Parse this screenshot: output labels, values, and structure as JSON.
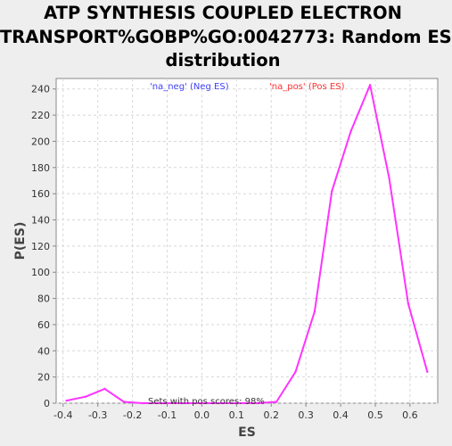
{
  "chart_data": {
    "type": "line",
    "title_lines": [
      "ATP SYNTHESIS COUPLED ELECTRON",
      "TRANSPORT%GOBP%GO:0042773: Random ES",
      "distribution"
    ],
    "xlabel": "ES",
    "ylabel": "P(ES)",
    "xlim": [
      -0.42,
      0.68
    ],
    "ylim": [
      0,
      248
    ],
    "xticks": [
      -0.4,
      -0.3,
      -0.2,
      -0.1,
      0.0,
      0.1,
      0.2,
      0.3,
      0.4,
      0.5,
      0.6
    ],
    "xtick_labels": [
      "-0.4",
      "-0.3",
      "-0.2",
      "-0.1",
      "0.0",
      "0.1",
      "0.2",
      "0.3",
      "0.4",
      "0.5",
      "0.6"
    ],
    "yticks": [
      0,
      20,
      40,
      60,
      80,
      100,
      120,
      140,
      160,
      180,
      200,
      220,
      240
    ],
    "ytick_labels": [
      "0",
      "20",
      "40",
      "60",
      "80",
      "100",
      "120",
      "140",
      "160",
      "180",
      "200",
      "220",
      "240"
    ],
    "grid": true,
    "legend": [
      {
        "label": "'na_neg' (Neg ES)",
        "color": "#4040ff",
        "position": "top-left"
      },
      {
        "label": "'na_pos' (Pos ES)",
        "color": "#ff3030",
        "position": "top-center"
      }
    ],
    "annotation": "Sets with pos scores: 98%",
    "series": [
      {
        "name": "ES distribution",
        "color": "#ff33ff",
        "x": [
          -0.39,
          -0.335,
          -0.28,
          -0.225,
          -0.17,
          -0.115,
          -0.06,
          -0.005,
          0.05,
          0.105,
          0.16,
          0.215,
          0.27,
          0.325,
          0.375,
          0.43,
          0.485,
          0.54,
          0.595,
          0.65
        ],
        "y": [
          2,
          5,
          11,
          1,
          0,
          0,
          0,
          0,
          0,
          0,
          0,
          1,
          24,
          70,
          162,
          208,
          243,
          172,
          76,
          24
        ]
      }
    ]
  }
}
